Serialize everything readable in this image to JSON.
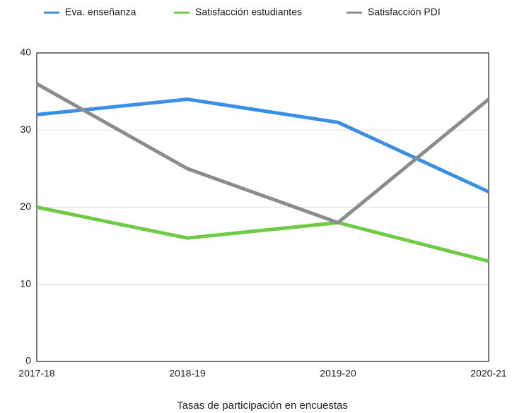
{
  "chart_data": {
    "type": "line",
    "categories": [
      "2017-18",
      "2018-19",
      "2019-20",
      "2020-21"
    ],
    "series": [
      {
        "name": "Eva. enseñanza",
        "color": "#3a8ee6",
        "values": [
          32,
          34,
          31,
          22
        ]
      },
      {
        "name": "Satisfacción estudiantes",
        "color": "#6dcb45",
        "values": [
          20,
          16,
          18,
          13
        ]
      },
      {
        "name": "Satisfacción PDI",
        "color": "#8c8c8c",
        "values": [
          36,
          25,
          18,
          34
        ]
      }
    ],
    "ylim": [
      0,
      40
    ],
    "yticks": [
      0,
      10,
      20,
      30,
      40
    ],
    "grid": true,
    "xlabel": "Tasas de participación en encuestas",
    "legend": "top"
  }
}
